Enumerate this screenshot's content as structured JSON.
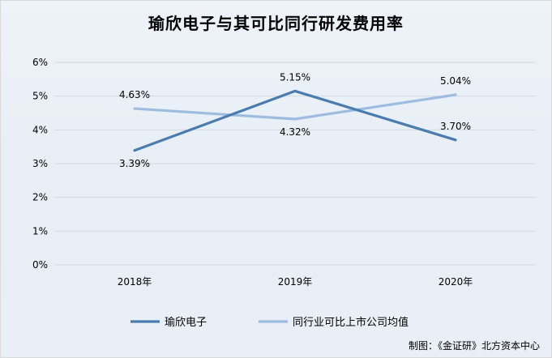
{
  "title": "瑜欣电子与其可比同行研发费用率",
  "source": "制图：《金证研》北方资本中心",
  "colors": {
    "series1": "#4a7cb0",
    "series2": "#9dbce0",
    "grid": "#d3d8de"
  },
  "chart_data": {
    "type": "line",
    "title": "瑜欣电子与其可比同行研发费用率",
    "categories": [
      "2018年",
      "2019年",
      "2020年"
    ],
    "ylim": [
      0,
      6
    ],
    "yticks": [
      "0%",
      "1%",
      "2%",
      "3%",
      "4%",
      "5%",
      "6%"
    ],
    "grid": true,
    "legend": "bottom",
    "series": [
      {
        "name": "瑜欣电子",
        "values": [
          3.39,
          5.15,
          3.7
        ],
        "labels": [
          "3.39%",
          "5.15%",
          "3.70%"
        ]
      },
      {
        "name": "同行业可比上市公司均值",
        "values": [
          4.63,
          4.32,
          5.04
        ],
        "labels": [
          "4.63%",
          "4.32%",
          "5.04%"
        ]
      }
    ]
  }
}
